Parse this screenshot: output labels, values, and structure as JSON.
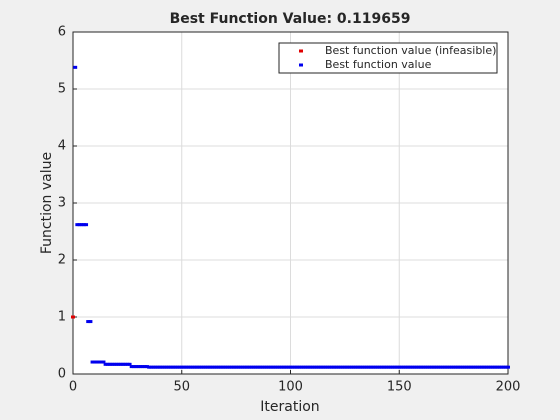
{
  "chart_data": {
    "type": "scatter",
    "title": "Best Function Value: 0.119659",
    "xlabel": "Iteration",
    "ylabel": "Function value",
    "xlim": [
      0,
      200
    ],
    "xticks": [
      0,
      50,
      100,
      150,
      200
    ],
    "ylim": [
      0,
      6
    ],
    "yticks": [
      0,
      1,
      2,
      3,
      4,
      5,
      6
    ],
    "grid": true,
    "legend": "top-right",
    "series": [
      {
        "name": "Best function value (infeasible)",
        "color": "#e00000",
        "x": [
          0
        ],
        "values": [
          1
        ]
      },
      {
        "name": "Best function value",
        "color": "#0000ee",
        "x": [
          1,
          2,
          3,
          4,
          5,
          6,
          7,
          8,
          9,
          10,
          11,
          12,
          13,
          14,
          15,
          16,
          17,
          18,
          19,
          20,
          21,
          22,
          23,
          24,
          25,
          26,
          27,
          28,
          29,
          30,
          31,
          32,
          33,
          34,
          35,
          36,
          37,
          38,
          39,
          40,
          41,
          42,
          43,
          44,
          45,
          46,
          47,
          48,
          49,
          50,
          51,
          52,
          53,
          54,
          55,
          56,
          57,
          58,
          59,
          60,
          61,
          62,
          63,
          64,
          65,
          66,
          67,
          68,
          69,
          70,
          71,
          72,
          73,
          74,
          75,
          76,
          77,
          78,
          79,
          80,
          81,
          82,
          83,
          84,
          85,
          86,
          87,
          88,
          89,
          90,
          91,
          92,
          93,
          94,
          95,
          96,
          97,
          98,
          99,
          100,
          101,
          102,
          103,
          104,
          105,
          106,
          107,
          108,
          109,
          110,
          111,
          112,
          113,
          114,
          115,
          116,
          117,
          118,
          119,
          120,
          121,
          122,
          123,
          124,
          125,
          126,
          127,
          128,
          129,
          130,
          131,
          132,
          133,
          134,
          135,
          136,
          137,
          138,
          139,
          140,
          141,
          142,
          143,
          144,
          145,
          146,
          147,
          148,
          149,
          150,
          151,
          152,
          153,
          154,
          155,
          156,
          157,
          158,
          159,
          160,
          161,
          162,
          163,
          164,
          165,
          166,
          167,
          168,
          169,
          170,
          171,
          172,
          173,
          174,
          175,
          176,
          177,
          178,
          179,
          180,
          181,
          182,
          183,
          184,
          185,
          186,
          187,
          188,
          189,
          190,
          191,
          192,
          193,
          194,
          195,
          196,
          197,
          198,
          199,
          200
        ],
        "values": [
          5.38,
          2.62,
          2.62,
          2.62,
          2.62,
          2.62,
          0.92,
          0.92,
          0.21,
          0.21,
          0.21,
          0.21,
          0.21,
          0.21,
          0.17,
          0.17,
          0.17,
          0.17,
          0.17,
          0.17,
          0.17,
          0.17,
          0.17,
          0.17,
          0.17,
          0.17,
          0.13,
          0.13,
          0.13,
          0.13,
          0.13,
          0.13,
          0.13,
          0.13,
          0.12,
          0.12,
          0.12,
          0.12,
          0.12,
          0.12,
          0.12,
          0.12,
          0.12,
          0.12,
          0.12,
          0.12,
          0.12,
          0.12,
          0.12,
          0.12,
          0.12,
          0.12,
          0.12,
          0.12,
          0.12,
          0.12,
          0.12,
          0.12,
          0.12,
          0.12,
          0.12,
          0.12,
          0.12,
          0.12,
          0.12,
          0.12,
          0.12,
          0.12,
          0.12,
          0.12,
          0.12,
          0.12,
          0.12,
          0.12,
          0.12,
          0.12,
          0.12,
          0.12,
          0.12,
          0.12,
          0.12,
          0.12,
          0.12,
          0.12,
          0.12,
          0.12,
          0.12,
          0.12,
          0.12,
          0.12,
          0.12,
          0.12,
          0.12,
          0.12,
          0.12,
          0.12,
          0.12,
          0.12,
          0.12,
          0.12,
          0.12,
          0.12,
          0.12,
          0.12,
          0.12,
          0.12,
          0.12,
          0.12,
          0.12,
          0.12,
          0.12,
          0.12,
          0.12,
          0.12,
          0.12,
          0.12,
          0.12,
          0.12,
          0.12,
          0.12,
          0.12,
          0.12,
          0.12,
          0.12,
          0.12,
          0.12,
          0.12,
          0.12,
          0.12,
          0.12,
          0.12,
          0.12,
          0.12,
          0.12,
          0.12,
          0.12,
          0.12,
          0.12,
          0.12,
          0.12,
          0.12,
          0.12,
          0.12,
          0.12,
          0.12,
          0.12,
          0.12,
          0.12,
          0.12,
          0.12,
          0.12,
          0.12,
          0.12,
          0.12,
          0.12,
          0.12,
          0.12,
          0.12,
          0.12,
          0.12,
          0.12,
          0.12,
          0.12,
          0.12,
          0.12,
          0.12,
          0.12,
          0.12,
          0.12,
          0.12,
          0.12,
          0.12,
          0.12,
          0.12,
          0.12,
          0.12,
          0.12,
          0.12,
          0.12,
          0.12,
          0.12,
          0.12,
          0.12,
          0.12,
          0.12,
          0.12,
          0.12,
          0.12,
          0.12,
          0.12,
          0.12,
          0.12,
          0.12,
          0.12,
          0.12,
          0.12,
          0.12,
          0.12,
          0.12,
          0.12
        ]
      }
    ]
  }
}
